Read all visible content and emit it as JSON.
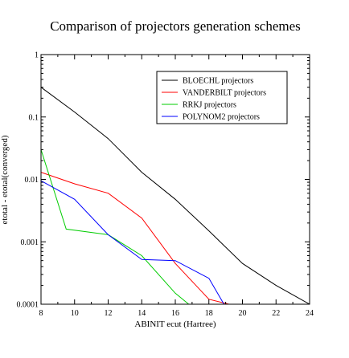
{
  "chart_data": {
    "type": "line",
    "title": "Comparison of projectors generation schemes",
    "xlabel": "ABINIT ecut (Hartree)",
    "ylabel": "etotal - etotal(converged)",
    "xlim": [
      8,
      24
    ],
    "ylim": [
      0.0001,
      1
    ],
    "yscale": "log",
    "grid": false,
    "legend_position": "top-right",
    "x_ticks": [
      8,
      10,
      12,
      14,
      16,
      18,
      20,
      22,
      24
    ],
    "x_tick_labels": [
      "8",
      "10",
      "12",
      "14",
      "16",
      "18",
      "20",
      "22",
      "24"
    ],
    "y_ticks": [
      0.0001,
      0.001,
      0.01,
      0.1,
      1
    ],
    "y_tick_labels": [
      "0.0001",
      "0.001",
      "0.01",
      "0.1",
      "1"
    ],
    "series": [
      {
        "name": "BLOECHL projectors",
        "color": "#000000",
        "x": [
          8,
          10,
          12,
          14,
          16,
          18,
          20,
          22,
          24
        ],
        "y": [
          0.3,
          0.12,
          0.045,
          0.013,
          0.0048,
          0.0015,
          0.00045,
          0.0002,
          0.0001
        ]
      },
      {
        "name": "VANDERBILT projectors",
        "color": "#ff0000",
        "x": [
          8,
          10,
          12,
          14,
          16,
          18,
          19.2
        ],
        "y": [
          0.013,
          0.0085,
          0.006,
          0.0024,
          0.00045,
          0.00012,
          0.0001
        ]
      },
      {
        "name": "RRKJ projectors",
        "color": "#00cc00",
        "x": [
          8,
          9.5,
          12,
          14,
          16,
          16.8
        ],
        "y": [
          0.03,
          0.0016,
          0.0013,
          0.0006,
          0.00015,
          0.0001
        ]
      },
      {
        "name": "POLYNOM2 projectors",
        "color": "#0000ff",
        "x": [
          8,
          10,
          12,
          14,
          16,
          18,
          18.9
        ],
        "y": [
          0.0095,
          0.0048,
          0.0013,
          0.00052,
          0.0005,
          0.00026,
          0.0001
        ]
      }
    ]
  }
}
